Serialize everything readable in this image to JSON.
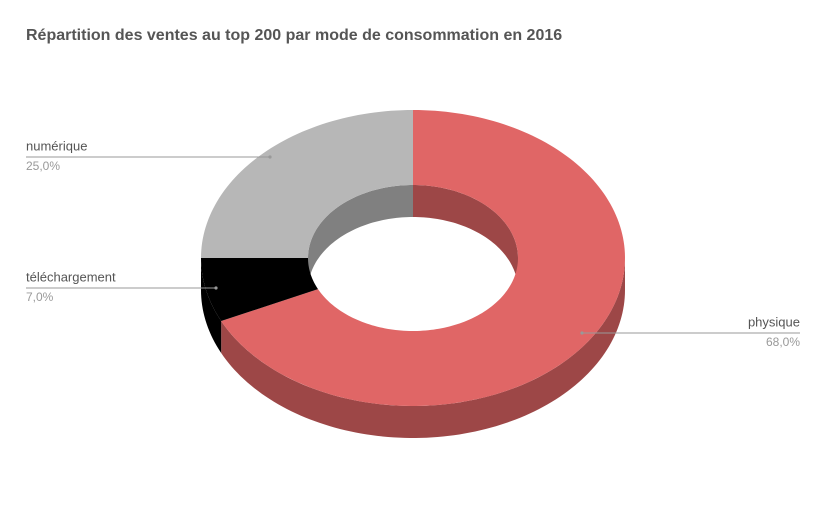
{
  "chart_data": {
    "type": "donut",
    "title": "Répartition des ventes au top 200 par mode de consommation en 2016",
    "categories": [
      "physique",
      "téléchargement",
      "numérique"
    ],
    "values": [
      68,
      7,
      25
    ],
    "value_labels": [
      "68,0%",
      "7,0%",
      "25,0%"
    ],
    "colors": [
      "#e06666",
      "#000000",
      "#b7b7b7"
    ]
  }
}
